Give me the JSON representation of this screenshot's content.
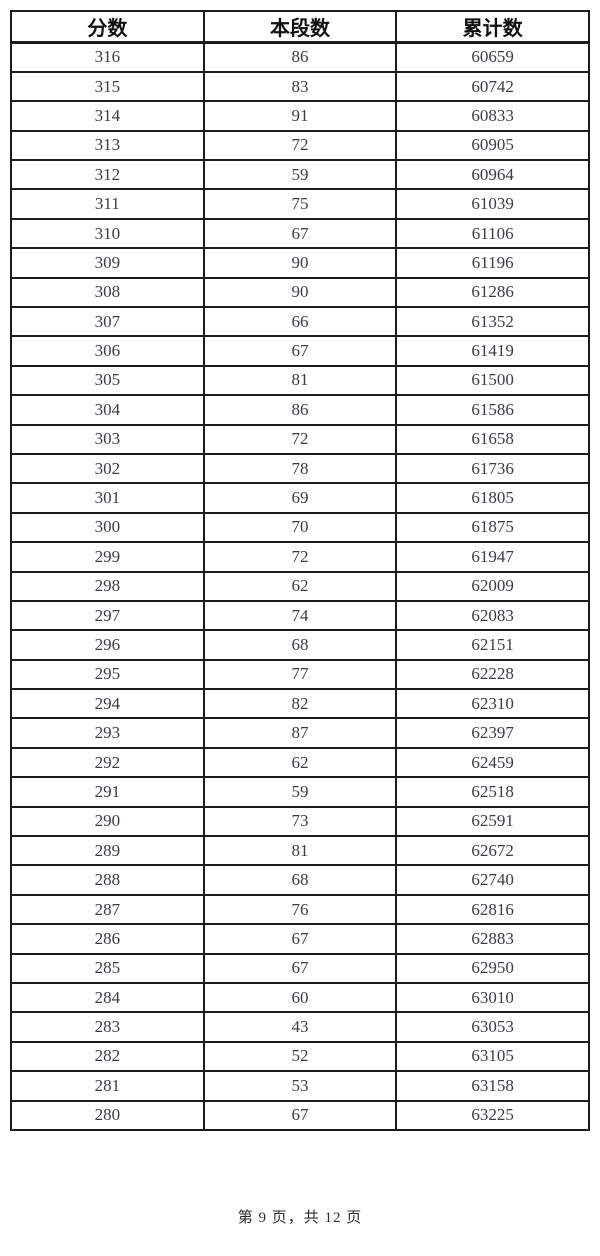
{
  "table": {
    "headers": [
      "分数",
      "本段数",
      "累计数"
    ],
    "columns": [
      "score",
      "segment-count",
      "cumulative-count"
    ],
    "rows": [
      [
        "316",
        "86",
        "60659"
      ],
      [
        "315",
        "83",
        "60742"
      ],
      [
        "314",
        "91",
        "60833"
      ],
      [
        "313",
        "72",
        "60905"
      ],
      [
        "312",
        "59",
        "60964"
      ],
      [
        "311",
        "75",
        "61039"
      ],
      [
        "310",
        "67",
        "61106"
      ],
      [
        "309",
        "90",
        "61196"
      ],
      [
        "308",
        "90",
        "61286"
      ],
      [
        "307",
        "66",
        "61352"
      ],
      [
        "306",
        "67",
        "61419"
      ],
      [
        "305",
        "81",
        "61500"
      ],
      [
        "304",
        "86",
        "61586"
      ],
      [
        "303",
        "72",
        "61658"
      ],
      [
        "302",
        "78",
        "61736"
      ],
      [
        "301",
        "69",
        "61805"
      ],
      [
        "300",
        "70",
        "61875"
      ],
      [
        "299",
        "72",
        "61947"
      ],
      [
        "298",
        "62",
        "62009"
      ],
      [
        "297",
        "74",
        "62083"
      ],
      [
        "296",
        "68",
        "62151"
      ],
      [
        "295",
        "77",
        "62228"
      ],
      [
        "294",
        "82",
        "62310"
      ],
      [
        "293",
        "87",
        "62397"
      ],
      [
        "292",
        "62",
        "62459"
      ],
      [
        "291",
        "59",
        "62518"
      ],
      [
        "290",
        "73",
        "62591"
      ],
      [
        "289",
        "81",
        "62672"
      ],
      [
        "288",
        "68",
        "62740"
      ],
      [
        "287",
        "76",
        "62816"
      ],
      [
        "286",
        "67",
        "62883"
      ],
      [
        "285",
        "67",
        "62950"
      ],
      [
        "284",
        "60",
        "63010"
      ],
      [
        "283",
        "43",
        "63053"
      ],
      [
        "282",
        "52",
        "63105"
      ],
      [
        "281",
        "53",
        "63158"
      ],
      [
        "280",
        "67",
        "63225"
      ]
    ]
  },
  "footer": {
    "page_text": "第 9 页，共 12 页"
  },
  "colors": {
    "border": "#1c1c1c",
    "header_text": "#111111",
    "cell_text": "#3c3c44",
    "footer_text": "#2e2e2e",
    "background": "#ffffff"
  }
}
